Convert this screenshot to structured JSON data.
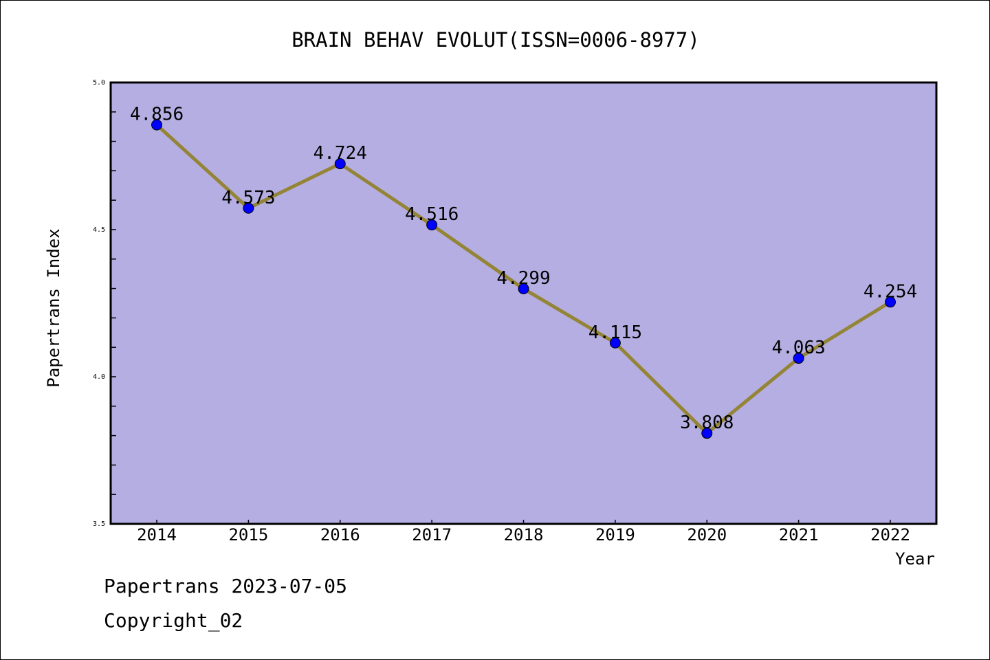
{
  "chart_data": {
    "type": "line",
    "title": "BRAIN BEHAV EVOLUT(ISSN=0006-8977)",
    "xlabel": "Year",
    "ylabel": "Papertrans Index",
    "categories": [
      "2014",
      "2015",
      "2016",
      "2017",
      "2018",
      "2019",
      "2020",
      "2021",
      "2022"
    ],
    "values": [
      4.856,
      4.573,
      4.724,
      4.516,
      4.299,
      4.115,
      3.808,
      4.063,
      4.254
    ],
    "data_labels": [
      "4.856",
      "4.573",
      "4.724",
      "4.516",
      "4.299",
      "4.115",
      "3.808",
      "4.063",
      "4.254"
    ],
    "ylim": [
      3.5,
      5.0
    ],
    "yticks": [
      "3.5",
      "4.0",
      "4.5",
      "5.0"
    ],
    "grid": false,
    "colors": {
      "plot_bg": "#b5aee2",
      "line": "#948436",
      "marker": "#0000ff"
    }
  },
  "footer": {
    "line1": "Papertrans 2023-07-05",
    "line2": "Copyright_02"
  }
}
